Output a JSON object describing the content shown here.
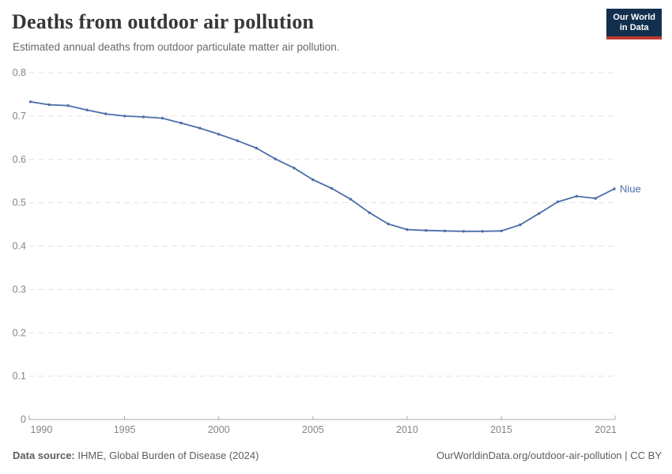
{
  "header": {
    "title": "Deaths from outdoor air pollution",
    "subtitle": "Estimated annual deaths from outdoor particulate matter air pollution.",
    "logo": {
      "line1": "Our World",
      "line2": "in Data"
    }
  },
  "chart_data": {
    "type": "line",
    "title": "Deaths from outdoor air pollution",
    "xlabel": "",
    "ylabel": "",
    "x": [
      1990,
      1991,
      1992,
      1993,
      1994,
      1995,
      1996,
      1997,
      1998,
      1999,
      2000,
      2001,
      2002,
      2003,
      2004,
      2005,
      2006,
      2007,
      2008,
      2009,
      2010,
      2011,
      2012,
      2013,
      2014,
      2015,
      2016,
      2017,
      2018,
      2019,
      2020,
      2021
    ],
    "series": [
      {
        "name": "Niue",
        "color": "#4C6EA9",
        "values": [
          0.733,
          0.726,
          0.724,
          0.714,
          0.705,
          0.7,
          0.698,
          0.695,
          0.684,
          0.672,
          0.658,
          0.643,
          0.626,
          0.601,
          0.58,
          0.553,
          0.533,
          0.508,
          0.477,
          0.451,
          0.438,
          0.436,
          0.435,
          0.434,
          0.434,
          0.435,
          0.449,
          0.475,
          0.502,
          0.515,
          0.51,
          0.532
        ]
      }
    ],
    "x_ticks": [
      1990,
      1995,
      2000,
      2005,
      2010,
      2015,
      2021
    ],
    "y_ticks": [
      0,
      0.1,
      0.2,
      0.3,
      0.4,
      0.5,
      0.6,
      0.7,
      0.8
    ],
    "y_tick_labels": [
      "0",
      "0.1",
      "0.2",
      "0.3",
      "0.4",
      "0.5",
      "0.6",
      "0.7",
      "0.8"
    ],
    "xlim": [
      1990,
      2021
    ],
    "ylim": [
      0,
      0.8
    ],
    "grid": "horizontal-dashed",
    "legend_position": "end-of-line-label"
  },
  "footer": {
    "datasource_label": "Data source:",
    "datasource_value": "IHME, Global Burden of Disease (2024)",
    "credit": "OurWorldinData.org/outdoor-air-pollution | CC BY"
  },
  "colors": {
    "line": "#4C6EA9",
    "gridline": "#e2e2e2",
    "axis": "#a8a8a8",
    "tick_text": "#858585",
    "title_text": "#383636",
    "subtitle_text": "#6a6a6a",
    "footer_text": "#5e5e5e",
    "logo_bg": "#12304e",
    "logo_stripe": "#bc3b32"
  }
}
